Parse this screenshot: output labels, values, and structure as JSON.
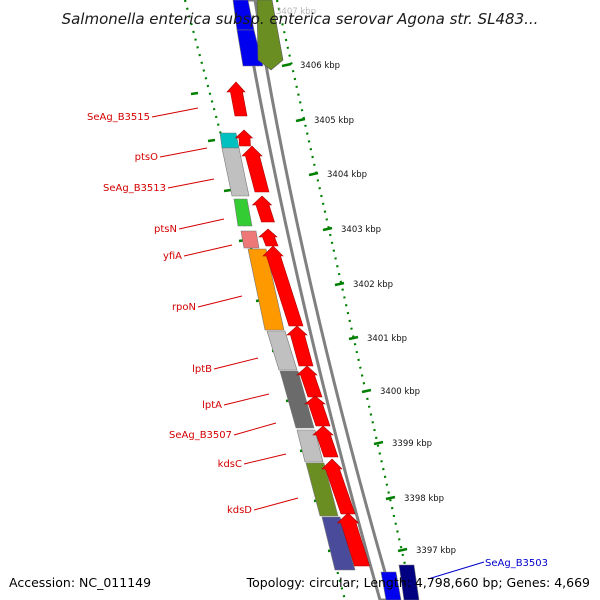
{
  "title": "Salmonella enterica subsp. enterica serovar Agona str. SL483...",
  "footer": {
    "accession": "Accession: NC_011149",
    "topology": "Topology: circular; Length: 4,798,660 bp; Genes: 4,669"
  },
  "ticks": [
    {
      "label": "3407 kbp"
    },
    {
      "label": "3406 kbp"
    },
    {
      "label": "3405 kbp"
    },
    {
      "label": "3404 kbp"
    },
    {
      "label": "3403 kbp"
    },
    {
      "label": "3402 kbp"
    },
    {
      "label": "3401 kbp"
    },
    {
      "label": "3400 kbp"
    },
    {
      "label": "3399 kbp"
    },
    {
      "label": "3398 kbp"
    },
    {
      "label": "3397 kbp"
    }
  ],
  "gene_labels": [
    {
      "name": "SeAg_B3515",
      "color": "#d40000"
    },
    {
      "name": "ptsO",
      "color": "#d40000"
    },
    {
      "name": "SeAg_B3513",
      "color": "#d40000"
    },
    {
      "name": "ptsN",
      "color": "#d40000"
    },
    {
      "name": "yfiA",
      "color": "#d40000"
    },
    {
      "name": "rpoN",
      "color": "#d40000"
    },
    {
      "name": "lptB",
      "color": "#d40000"
    },
    {
      "name": "lptA",
      "color": "#d40000"
    },
    {
      "name": "SeAg_B3507",
      "color": "#d40000"
    },
    {
      "name": "kdsC",
      "color": "#d40000"
    },
    {
      "name": "kdsD",
      "color": "#d40000"
    },
    {
      "name": "SeAg_B3503",
      "color": "#0000cc"
    }
  ],
  "colors": {
    "cds": "#ff0000",
    "backbone": "#808080",
    "ruler": "#008000",
    "cog_orange": "#ff9900",
    "cog_grey": "#c0c0c0",
    "cog_darkgrey": "#6b6b6b",
    "cog_olive": "#6b8e23",
    "cog_slate": "#4b4b9b",
    "cog_cyan": "#00c0c0",
    "cog_green": "#33cc33",
    "cog_pink": "#ee7777",
    "cog_blue": "#0000ee",
    "cog_navy": "#000080"
  }
}
